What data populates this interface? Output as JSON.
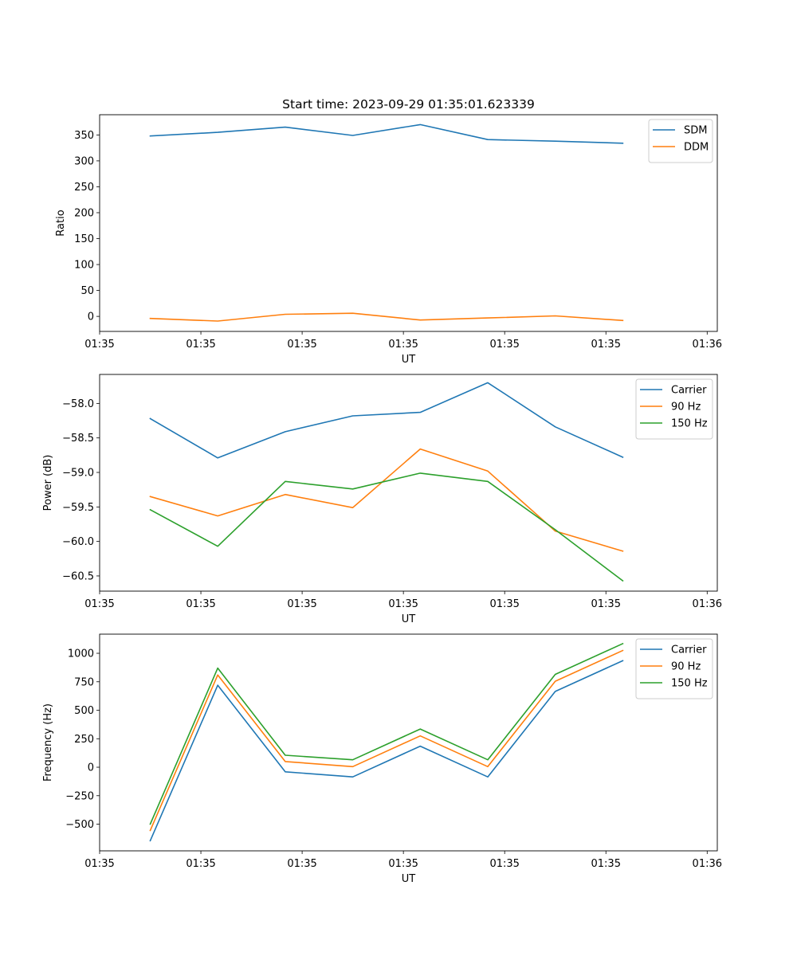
{
  "title": "Start time: 2023-09-29 01:35:01.623339",
  "colors": {
    "blue": "#1f77b4",
    "orange": "#ff7f0e",
    "green": "#2ca02c"
  },
  "chart_data": [
    {
      "type": "line",
      "xlabel": "UT",
      "ylabel": "Ratio",
      "x": [
        0,
        1,
        2,
        3,
        4,
        5,
        6,
        7
      ],
      "xlim": [
        -0.75,
        8.4
      ],
      "xtick_positions": [
        -0.75,
        0.75,
        2.25,
        3.75,
        5.25,
        6.75,
        8.25
      ],
      "xtick_labels": [
        "01:35",
        "01:35",
        "01:35",
        "01:35",
        "01:35",
        "01:35",
        "01:36"
      ],
      "ylim": [
        -29,
        389
      ],
      "yticks": [
        0,
        50,
        100,
        150,
        200,
        250,
        300,
        350
      ],
      "ytick_labels": [
        "0",
        "50",
        "100",
        "150",
        "200",
        "250",
        "300",
        "350"
      ],
      "legend": "top-right",
      "series": [
        {
          "name": "SDM",
          "color": "#1f77b4",
          "values": [
            348,
            355,
            365,
            349,
            370,
            341,
            338,
            334
          ]
        },
        {
          "name": "DDM",
          "color": "#ff7f0e",
          "values": [
            -4,
            -9,
            4,
            6,
            -7,
            -3,
            1,
            -8
          ]
        }
      ]
    },
    {
      "type": "line",
      "xlabel": "UT",
      "ylabel": "Power (dB)",
      "x": [
        0,
        1,
        2,
        3,
        4,
        5,
        6,
        7
      ],
      "xlim": [
        -0.75,
        8.4
      ],
      "xtick_positions": [
        -0.75,
        0.75,
        2.25,
        3.75,
        5.25,
        6.75,
        8.25
      ],
      "xtick_labels": [
        "01:35",
        "01:35",
        "01:35",
        "01:35",
        "01:35",
        "01:35",
        "01:36"
      ],
      "ylim": [
        -60.72,
        -57.58
      ],
      "yticks": [
        -60.5,
        -60.0,
        -59.5,
        -59.0,
        -58.5,
        -58.0
      ],
      "ytick_labels": [
        "−60.5",
        "−60.0",
        "−59.5",
        "−59.0",
        "−58.5",
        "−58.0"
      ],
      "legend": "top-right",
      "series": [
        {
          "name": "Carrier",
          "color": "#1f77b4",
          "values": [
            -58.22,
            -58.79,
            -58.41,
            -58.18,
            -58.13,
            -57.7,
            -58.34,
            -58.78
          ]
        },
        {
          "name": "90 Hz",
          "color": "#ff7f0e",
          "values": [
            -59.35,
            -59.63,
            -59.32,
            -59.51,
            -58.66,
            -58.98,
            -59.85,
            -60.14
          ]
        },
        {
          "name": "150 Hz",
          "color": "#2ca02c",
          "values": [
            -59.54,
            -60.07,
            -59.13,
            -59.24,
            -59.01,
            -59.13,
            -59.83,
            -60.57
          ]
        }
      ]
    },
    {
      "type": "line",
      "xlabel": "UT",
      "ylabel": "Frequency (Hz)",
      "x": [
        0,
        1,
        2,
        3,
        4,
        5,
        6,
        7
      ],
      "xlim": [
        -0.75,
        8.4
      ],
      "xtick_positions": [
        -0.75,
        0.75,
        2.25,
        3.75,
        5.25,
        6.75,
        8.25
      ],
      "xtick_labels": [
        "01:35",
        "01:35",
        "01:35",
        "01:35",
        "01:35",
        "01:35",
        "01:36"
      ],
      "ylim": [
        -734,
        1168
      ],
      "yticks": [
        -500,
        -250,
        0,
        250,
        500,
        750,
        1000
      ],
      "ytick_labels": [
        "−500",
        "−250",
        "0",
        "250",
        "500",
        "750",
        "1000"
      ],
      "legend": "top-right",
      "series": [
        {
          "name": "Carrier",
          "color": "#1f77b4",
          "values": [
            -645,
            720,
            -40,
            -85,
            185,
            -85,
            665,
            935
          ]
        },
        {
          "name": "90 Hz",
          "color": "#ff7f0e",
          "values": [
            -555,
            810,
            50,
            5,
            275,
            5,
            755,
            1025
          ]
        },
        {
          "name": "150 Hz",
          "color": "#2ca02c",
          "values": [
            -500,
            870,
            105,
            65,
            335,
            65,
            815,
            1085
          ]
        }
      ]
    }
  ]
}
